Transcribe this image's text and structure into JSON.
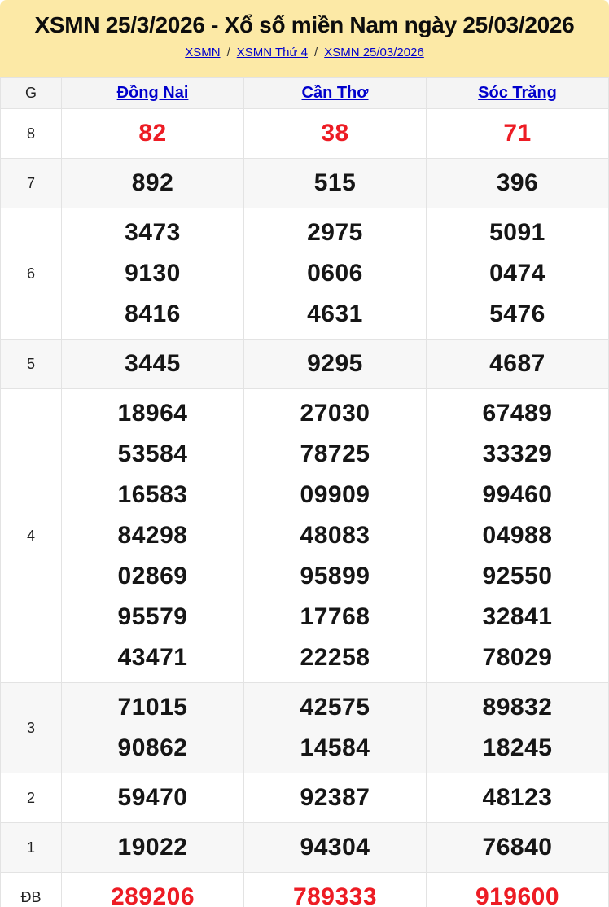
{
  "header": {
    "title": "XSMN 25/3/2026 - Xổ số miền Nam ngày 25/03/2026",
    "separator": "/",
    "breadcrumb": [
      {
        "label": "XSMN"
      },
      {
        "label": "XSMN Thứ 4"
      },
      {
        "label": "XSMN 25/03/2026"
      }
    ]
  },
  "table": {
    "corner_label": "G",
    "columns": [
      "Đồng Nai",
      "Cần Thơ",
      "Sóc Trăng"
    ],
    "rows": [
      {
        "prize": "8",
        "highlight": true,
        "cells": [
          [
            "82"
          ],
          [
            "38"
          ],
          [
            "71"
          ]
        ]
      },
      {
        "prize": "7",
        "highlight": false,
        "cells": [
          [
            "892"
          ],
          [
            "515"
          ],
          [
            "396"
          ]
        ]
      },
      {
        "prize": "6",
        "highlight": false,
        "cells": [
          [
            "3473",
            "9130",
            "8416"
          ],
          [
            "2975",
            "0606",
            "4631"
          ],
          [
            "5091",
            "0474",
            "5476"
          ]
        ]
      },
      {
        "prize": "5",
        "highlight": false,
        "cells": [
          [
            "3445"
          ],
          [
            "9295"
          ],
          [
            "4687"
          ]
        ]
      },
      {
        "prize": "4",
        "highlight": false,
        "cells": [
          [
            "18964",
            "53584",
            "16583",
            "84298",
            "02869",
            "95579",
            "43471"
          ],
          [
            "27030",
            "78725",
            "09909",
            "48083",
            "95899",
            "17768",
            "22258"
          ],
          [
            "67489",
            "33329",
            "99460",
            "04988",
            "92550",
            "32841",
            "78029"
          ]
        ]
      },
      {
        "prize": "3",
        "highlight": false,
        "cells": [
          [
            "71015",
            "90862"
          ],
          [
            "42575",
            "14584"
          ],
          [
            "89832",
            "18245"
          ]
        ]
      },
      {
        "prize": "2",
        "highlight": false,
        "cells": [
          [
            "59470"
          ],
          [
            "92387"
          ],
          [
            "48123"
          ]
        ]
      },
      {
        "prize": "1",
        "highlight": false,
        "cells": [
          [
            "19022"
          ],
          [
            "94304"
          ],
          [
            "76840"
          ]
        ]
      },
      {
        "prize": "ĐB",
        "highlight": true,
        "cells": [
          [
            "289206"
          ],
          [
            "789333"
          ],
          [
            "919600"
          ]
        ]
      }
    ]
  },
  "bottom_strip": {
    "cells": 13,
    "active_index": 0
  },
  "colors": {
    "header_bg": "#fce9a6",
    "link_blue": "#0000cc",
    "highlight_red": "#ed1c24",
    "row_alt_bg": "#f7f7f7",
    "table_border": "#e3e3e3",
    "strip_active_red": "#c60d0d",
    "strip_gray": "#e9e9e9"
  }
}
